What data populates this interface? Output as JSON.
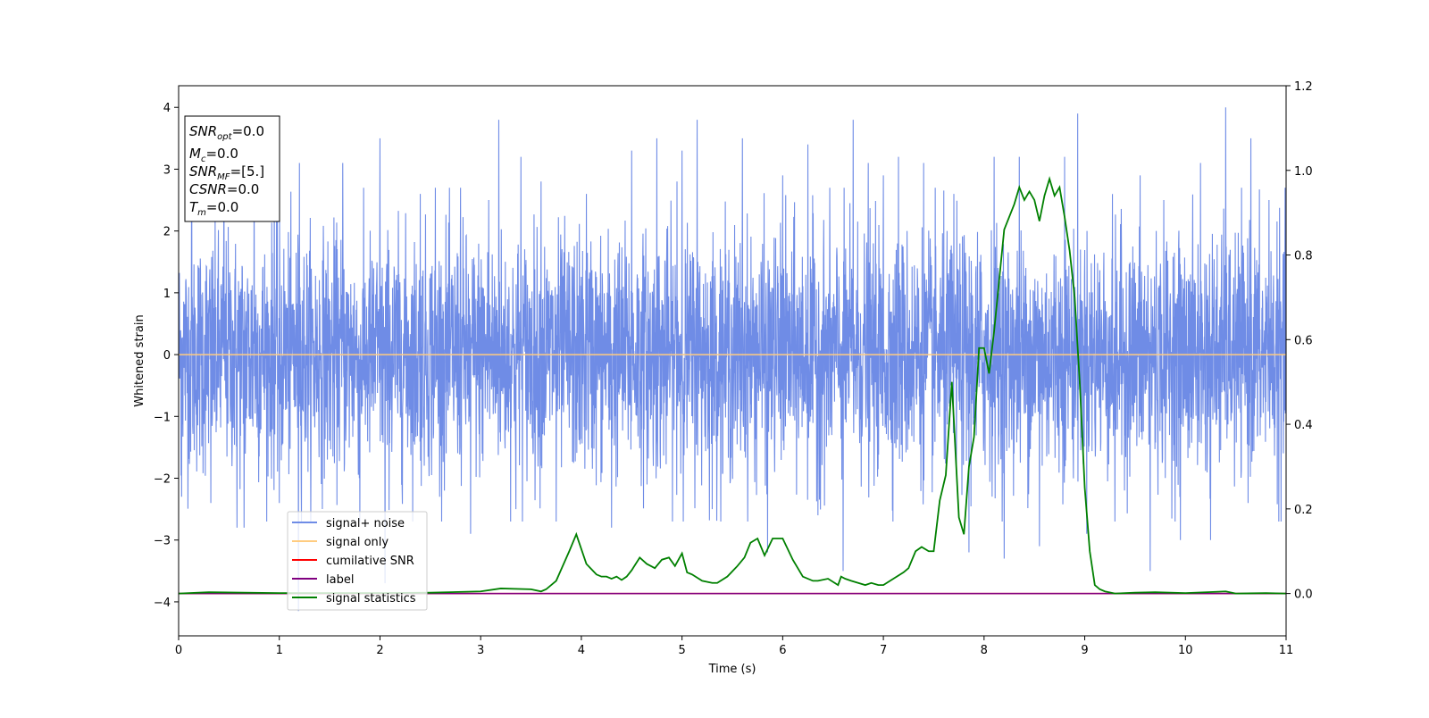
{
  "chart_data": {
    "type": "line",
    "xlabel": "Time (s)",
    "ylabel_left": "Whitened strain",
    "ylabel_right": "",
    "xlim": [
      0,
      11
    ],
    "ylim_left": [
      -4.55,
      4.35
    ],
    "ylim_right": [
      -0.1,
      1.2
    ],
    "x_ticks": [
      0,
      1,
      2,
      3,
      4,
      5,
      6,
      7,
      8,
      9,
      10,
      11
    ],
    "y_left_ticks": [
      -4,
      -3,
      -2,
      -1,
      0,
      1,
      2,
      3,
      4
    ],
    "y_right_ticks": [
      0.0,
      0.2,
      0.4,
      0.6,
      0.8,
      1.0,
      1.2
    ],
    "grid": false,
    "legend_position": "lower-left",
    "info_box": {
      "position": "upper-left",
      "lines": [
        {
          "main": "SNR",
          "sub": "opt",
          "value": "=0.0"
        },
        {
          "main": "M",
          "sub": "c",
          "value": "=0.0"
        },
        {
          "main": "SNR",
          "sub": "MF",
          "value": "=[5.]"
        },
        {
          "main": "CSNR",
          "sub": "",
          "value": "=0.0"
        },
        {
          "main": "T",
          "sub": "m",
          "value": "=0.0"
        }
      ]
    },
    "series": [
      {
        "name": "signal+ noise",
        "color": "#6f8ce6",
        "axis": "left",
        "style": "noise",
        "noise_std": 0.95,
        "spikes": [
          [
            0.03,
            -2.3
          ],
          [
            0.13,
            3.2
          ],
          [
            0.32,
            -2.4
          ],
          [
            0.45,
            3.0
          ],
          [
            0.58,
            -2.8
          ],
          [
            0.65,
            -2.8
          ],
          [
            0.75,
            3.3
          ],
          [
            0.95,
            3.2
          ],
          [
            1.0,
            -2.4
          ],
          [
            1.2,
            3.1
          ],
          [
            1.19,
            -4.15
          ],
          [
            1.63,
            3.1
          ],
          [
            1.8,
            -2.7
          ],
          [
            2.0,
            3.5
          ],
          [
            2.05,
            -3.7
          ],
          [
            2.4,
            2.6
          ],
          [
            2.55,
            2.7
          ],
          [
            2.8,
            2.7
          ],
          [
            2.9,
            -2.9
          ],
          [
            3.08,
            2.5
          ],
          [
            3.18,
            3.8
          ],
          [
            3.35,
            -2.5
          ],
          [
            3.4,
            3.2
          ],
          [
            3.6,
            2.8
          ],
          [
            3.75,
            -2.7
          ],
          [
            4.05,
            2.6
          ],
          [
            4.3,
            -2.8
          ],
          [
            4.5,
            3.3
          ],
          [
            4.75,
            3.5
          ],
          [
            4.95,
            2.8
          ],
          [
            5.0,
            3.3
          ],
          [
            5.15,
            3.8
          ],
          [
            5.3,
            -2.5
          ],
          [
            5.6,
            3.5
          ],
          [
            5.85,
            -3.2
          ],
          [
            6.0,
            2.9
          ],
          [
            6.25,
            3.4
          ],
          [
            6.35,
            -2.6
          ],
          [
            6.6,
            -3.5
          ],
          [
            6.7,
            3.8
          ],
          [
            6.85,
            3.1
          ],
          [
            7.0,
            2.9
          ],
          [
            7.15,
            3.2
          ],
          [
            7.4,
            3.1
          ],
          [
            7.7,
            2.6
          ],
          [
            7.85,
            -3.2
          ],
          [
            8.1,
            3.2
          ],
          [
            8.2,
            -3.3
          ],
          [
            8.35,
            3.2
          ],
          [
            8.55,
            -3.1
          ],
          [
            8.8,
            3.2
          ],
          [
            8.93,
            3.9
          ],
          [
            9.02,
            -2.9
          ],
          [
            9.3,
            -2.7
          ],
          [
            9.55,
            2.9
          ],
          [
            9.65,
            -3.5
          ],
          [
            9.95,
            -3.0
          ],
          [
            10.15,
            3.1
          ],
          [
            10.25,
            -3.0
          ],
          [
            10.4,
            4.0
          ],
          [
            10.65,
            3.5
          ],
          [
            10.83,
            2.5
          ],
          [
            10.95,
            -2.7
          ]
        ]
      },
      {
        "name": "signal only",
        "color": "#ffcc80",
        "axis": "left",
        "style": "line",
        "x": [
          0,
          11
        ],
        "y": [
          0,
          0
        ]
      },
      {
        "name": "cumilative SNR",
        "color": "#ff0000",
        "axis": "right",
        "style": "line",
        "x": [
          0,
          11
        ],
        "y": [
          0,
          0
        ]
      },
      {
        "name": "label",
        "color": "#800080",
        "axis": "right",
        "style": "line",
        "x": [
          0,
          11
        ],
        "y": [
          0,
          0
        ]
      },
      {
        "name": "signal statistics",
        "color": "#008000",
        "axis": "right",
        "style": "line",
        "x": [
          0,
          0.3,
          1.0,
          2.0,
          2.5,
          3.0,
          3.2,
          3.5,
          3.6,
          3.65,
          3.75,
          3.88,
          3.95,
          4.05,
          4.15,
          4.2,
          4.25,
          4.3,
          4.35,
          4.4,
          4.45,
          4.5,
          4.58,
          4.65,
          4.73,
          4.8,
          4.87,
          4.93,
          5.0,
          5.05,
          5.1,
          5.2,
          5.3,
          5.35,
          5.45,
          5.55,
          5.62,
          5.68,
          5.75,
          5.82,
          5.9,
          6.0,
          6.1,
          6.2,
          6.3,
          6.35,
          6.45,
          6.55,
          6.58,
          6.62,
          6.68,
          6.75,
          6.82,
          6.88,
          6.95,
          7.0,
          7.1,
          7.2,
          7.25,
          7.32,
          7.38,
          7.45,
          7.5,
          7.56,
          7.62,
          7.68,
          7.75,
          7.8,
          7.85,
          7.9,
          7.95,
          8.0,
          8.05,
          8.1,
          8.2,
          8.3,
          8.35,
          8.4,
          8.45,
          8.5,
          8.55,
          8.6,
          8.65,
          8.7,
          8.75,
          8.8,
          8.85,
          8.9,
          8.95,
          9.0,
          9.05,
          9.1,
          9.15,
          9.2,
          9.3,
          9.5,
          9.7,
          10.0,
          10.3,
          10.4,
          10.5,
          10.8,
          11.0
        ],
        "y": [
          0.0,
          0.003,
          0.001,
          0.001,
          0.002,
          0.005,
          0.012,
          0.01,
          0.005,
          0.01,
          0.03,
          0.1,
          0.14,
          0.07,
          0.045,
          0.04,
          0.04,
          0.035,
          0.04,
          0.032,
          0.04,
          0.055,
          0.085,
          0.07,
          0.06,
          0.08,
          0.085,
          0.065,
          0.095,
          0.05,
          0.045,
          0.03,
          0.025,
          0.025,
          0.04,
          0.065,
          0.085,
          0.12,
          0.13,
          0.09,
          0.13,
          0.13,
          0.08,
          0.04,
          0.03,
          0.03,
          0.035,
          0.02,
          0.04,
          0.035,
          0.03,
          0.025,
          0.02,
          0.025,
          0.02,
          0.02,
          0.035,
          0.05,
          0.06,
          0.1,
          0.11,
          0.1,
          0.1,
          0.22,
          0.28,
          0.5,
          0.18,
          0.14,
          0.3,
          0.37,
          0.58,
          0.58,
          0.52,
          0.62,
          0.86,
          0.92,
          0.96,
          0.93,
          0.95,
          0.93,
          0.88,
          0.94,
          0.98,
          0.94,
          0.96,
          0.89,
          0.81,
          0.7,
          0.5,
          0.25,
          0.1,
          0.02,
          0.01,
          0.005,
          0.0,
          0.002,
          0.003,
          0.001,
          0.004,
          0.005,
          0.0,
          0.001,
          0.0
        ]
      }
    ]
  }
}
